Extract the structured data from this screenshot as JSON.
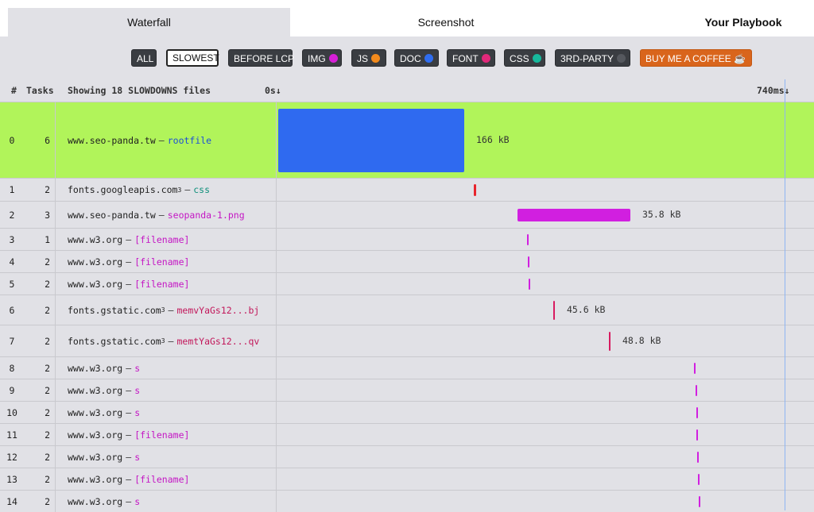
{
  "tabs": [
    {
      "label": "Waterfall"
    },
    {
      "label": "Screenshot"
    },
    {
      "label": "Your Playbook"
    }
  ],
  "filters": [
    {
      "label": "ALL",
      "dot": null
    },
    {
      "label": "SLOWEST",
      "dot": null,
      "selected": true
    },
    {
      "label": "BEFORE LCP",
      "dot": null
    },
    {
      "label": "IMG",
      "dot": "#d61fd6"
    },
    {
      "label": "JS",
      "dot": "#f28a1c"
    },
    {
      "label": "DOC",
      "dot": "#2f6df0"
    },
    {
      "label": "FONT",
      "dot": "#e0287a"
    },
    {
      "label": "CSS",
      "dot": "#17b89c"
    },
    {
      "label": "3RD-PARTY",
      "dot": "#55585e"
    },
    {
      "label": "BUY ME A COFFEE ☕",
      "dot": null,
      "coffee": true
    }
  ],
  "table_header": {
    "num": "#",
    "tasks": "Tasks",
    "showing": "Showing 18 SLOWDOWNS files",
    "start_time": "0s↓",
    "end_time": "740ms↓"
  },
  "waterfall": {
    "total_ms": 740
  },
  "rows": [
    {
      "num": "0",
      "tasks": "6",
      "host": "www.seo-panda.tw",
      "sup": "",
      "file": "rootfile",
      "type": "doc",
      "start_ms": 1,
      "end_ms": 258,
      "size": "166 kB",
      "highlight": true
    },
    {
      "num": "1",
      "tasks": "2",
      "host": "fonts.googleapis.com",
      "sup": "3",
      "file": "css",
      "type": "css",
      "start_ms": 272,
      "end_ms": 275,
      "size": ""
    },
    {
      "num": "2",
      "tasks": "3",
      "host": "www.seo-panda.tw",
      "sup": "",
      "file": "seopanda-1.png",
      "type": "img",
      "start_ms": 332,
      "end_ms": 488,
      "size": "35.8 kB"
    },
    {
      "num": "3",
      "tasks": "1",
      "host": "www.w3.org",
      "sup": "",
      "file": "[filename]",
      "type": "img",
      "start_ms": 345,
      "end_ms": 347,
      "size": ""
    },
    {
      "num": "4",
      "tasks": "2",
      "host": "www.w3.org",
      "sup": "",
      "file": "[filename]",
      "type": "img",
      "start_ms": 346,
      "end_ms": 348,
      "size": ""
    },
    {
      "num": "5",
      "tasks": "2",
      "host": "www.w3.org",
      "sup": "",
      "file": "[filename]",
      "type": "img",
      "start_ms": 347,
      "end_ms": 349,
      "size": ""
    },
    {
      "num": "6",
      "tasks": "2",
      "host": "fonts.gstatic.com",
      "sup": "3",
      "file": "memvYaGs12...bj",
      "type": "font",
      "start_ms": 382,
      "end_ms": 384,
      "size": "45.6 kB"
    },
    {
      "num": "7",
      "tasks": "2",
      "host": "fonts.gstatic.com",
      "sup": "3",
      "file": "memtYaGs12...qv",
      "type": "font",
      "start_ms": 458,
      "end_ms": 460,
      "size": "48.8 kB"
    },
    {
      "num": "8",
      "tasks": "2",
      "host": "www.w3.org",
      "sup": "",
      "file": "s",
      "type": "img",
      "start_ms": 576,
      "end_ms": 578,
      "size": ""
    },
    {
      "num": "9",
      "tasks": "2",
      "host": "www.w3.org",
      "sup": "",
      "file": "s",
      "type": "img",
      "start_ms": 578,
      "end_ms": 580,
      "size": ""
    },
    {
      "num": "10",
      "tasks": "2",
      "host": "www.w3.org",
      "sup": "",
      "file": "s",
      "type": "img",
      "start_ms": 579,
      "end_ms": 581,
      "size": ""
    },
    {
      "num": "11",
      "tasks": "2",
      "host": "www.w3.org",
      "sup": "",
      "file": "[filename]",
      "type": "img",
      "start_ms": 580,
      "end_ms": 582,
      "size": ""
    },
    {
      "num": "12",
      "tasks": "2",
      "host": "www.w3.org",
      "sup": "",
      "file": "s",
      "type": "img",
      "start_ms": 581,
      "end_ms": 583,
      "size": ""
    },
    {
      "num": "13",
      "tasks": "2",
      "host": "www.w3.org",
      "sup": "",
      "file": "[filename]",
      "type": "img",
      "start_ms": 582,
      "end_ms": 584,
      "size": ""
    },
    {
      "num": "14",
      "tasks": "2",
      "host": "www.w3.org",
      "sup": "",
      "file": "s",
      "type": "img",
      "start_ms": 583,
      "end_ms": 585,
      "size": ""
    }
  ],
  "colors": {
    "doc": "#2f6af0",
    "css": "#e8232b",
    "img": "#d11fe0",
    "font": "#d81b60",
    "highlight": "#b1f45a"
  }
}
